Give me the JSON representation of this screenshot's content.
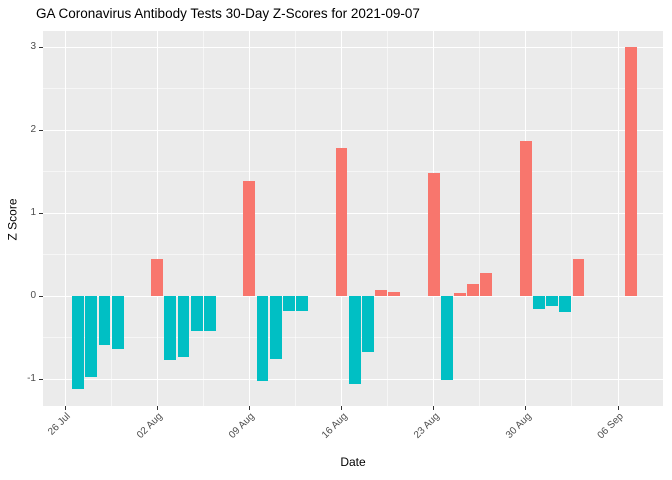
{
  "title": "GA Coronavirus Antibody Tests 30-Day Z-Scores for 2021-09-07",
  "chart_data": {
    "type": "bar",
    "title": "GA Coronavirus Antibody Tests 30-Day Z-Scores for 2021-09-07",
    "xlabel": "Date",
    "ylabel": "Z Score",
    "ylim": [
      -1.33,
      3.19
    ],
    "legend": "none",
    "grid": "white major and minor gridlines on grey panel",
    "x_axis": {
      "start_date": "2021-07-26",
      "ticks": [
        {
          "date": "2021-07-26",
          "label": "26 Jul"
        },
        {
          "date": "2021-08-02",
          "label": "02 Aug"
        },
        {
          "date": "2021-08-09",
          "label": "09 Aug"
        },
        {
          "date": "2021-08-16",
          "label": "16 Aug"
        },
        {
          "date": "2021-08-23",
          "label": "23 Aug"
        },
        {
          "date": "2021-08-30",
          "label": "30 Aug"
        },
        {
          "date": "2021-09-06",
          "label": "06 Sep"
        }
      ]
    },
    "y_axis": {
      "ticks": [
        {
          "value": 3,
          "label": "3"
        },
        {
          "value": 2,
          "label": "2"
        },
        {
          "value": 1,
          "label": "1"
        },
        {
          "value": 0,
          "label": "0"
        },
        {
          "value": -1,
          "label": "-1"
        }
      ],
      "minor_ticks": [
        2.5,
        1.5,
        0.5,
        -0.5
      ]
    },
    "bars": [
      {
        "date": "2021-07-27",
        "value": -1.12
      },
      {
        "date": "2021-07-28",
        "value": -0.97
      },
      {
        "date": "2021-07-29",
        "value": -0.59
      },
      {
        "date": "2021-07-30",
        "value": -0.64
      },
      {
        "date": "2021-08-02",
        "value": 0.45
      },
      {
        "date": "2021-08-03",
        "value": -0.77
      },
      {
        "date": "2021-08-04",
        "value": -0.74
      },
      {
        "date": "2021-08-05",
        "value": -0.42
      },
      {
        "date": "2021-08-06",
        "value": -0.42
      },
      {
        "date": "2021-08-09",
        "value": 1.39
      },
      {
        "date": "2021-08-10",
        "value": -1.03
      },
      {
        "date": "2021-08-11",
        "value": -0.76
      },
      {
        "date": "2021-08-12",
        "value": -0.18
      },
      {
        "date": "2021-08-13",
        "value": -0.18
      },
      {
        "date": "2021-08-16",
        "value": 1.78
      },
      {
        "date": "2021-08-17",
        "value": -1.06
      },
      {
        "date": "2021-08-18",
        "value": -0.68
      },
      {
        "date": "2021-08-19",
        "value": 0.07
      },
      {
        "date": "2021-08-20",
        "value": 0.05
      },
      {
        "date": "2021-08-23",
        "value": 1.48
      },
      {
        "date": "2021-08-24",
        "value": -1.01
      },
      {
        "date": "2021-08-25",
        "value": 0.04
      },
      {
        "date": "2021-08-26",
        "value": 0.15
      },
      {
        "date": "2021-08-27",
        "value": 0.28
      },
      {
        "date": "2021-08-30",
        "value": 1.87
      },
      {
        "date": "2021-08-31",
        "value": -0.16
      },
      {
        "date": "2021-09-01",
        "value": -0.12
      },
      {
        "date": "2021-09-02",
        "value": -0.19
      },
      {
        "date": "2021-09-03",
        "value": 0.45
      },
      {
        "date": "2021-09-07",
        "value": 3.0
      }
    ],
    "colors": {
      "positive": "#F8766D",
      "negative": "#00BFC4",
      "panel_background": "#EBEBEB",
      "gridline": "#FFFFFF",
      "axis_text": "#4D4D4D",
      "tick_mark": "#333333",
      "title_text": "#000000"
    }
  }
}
